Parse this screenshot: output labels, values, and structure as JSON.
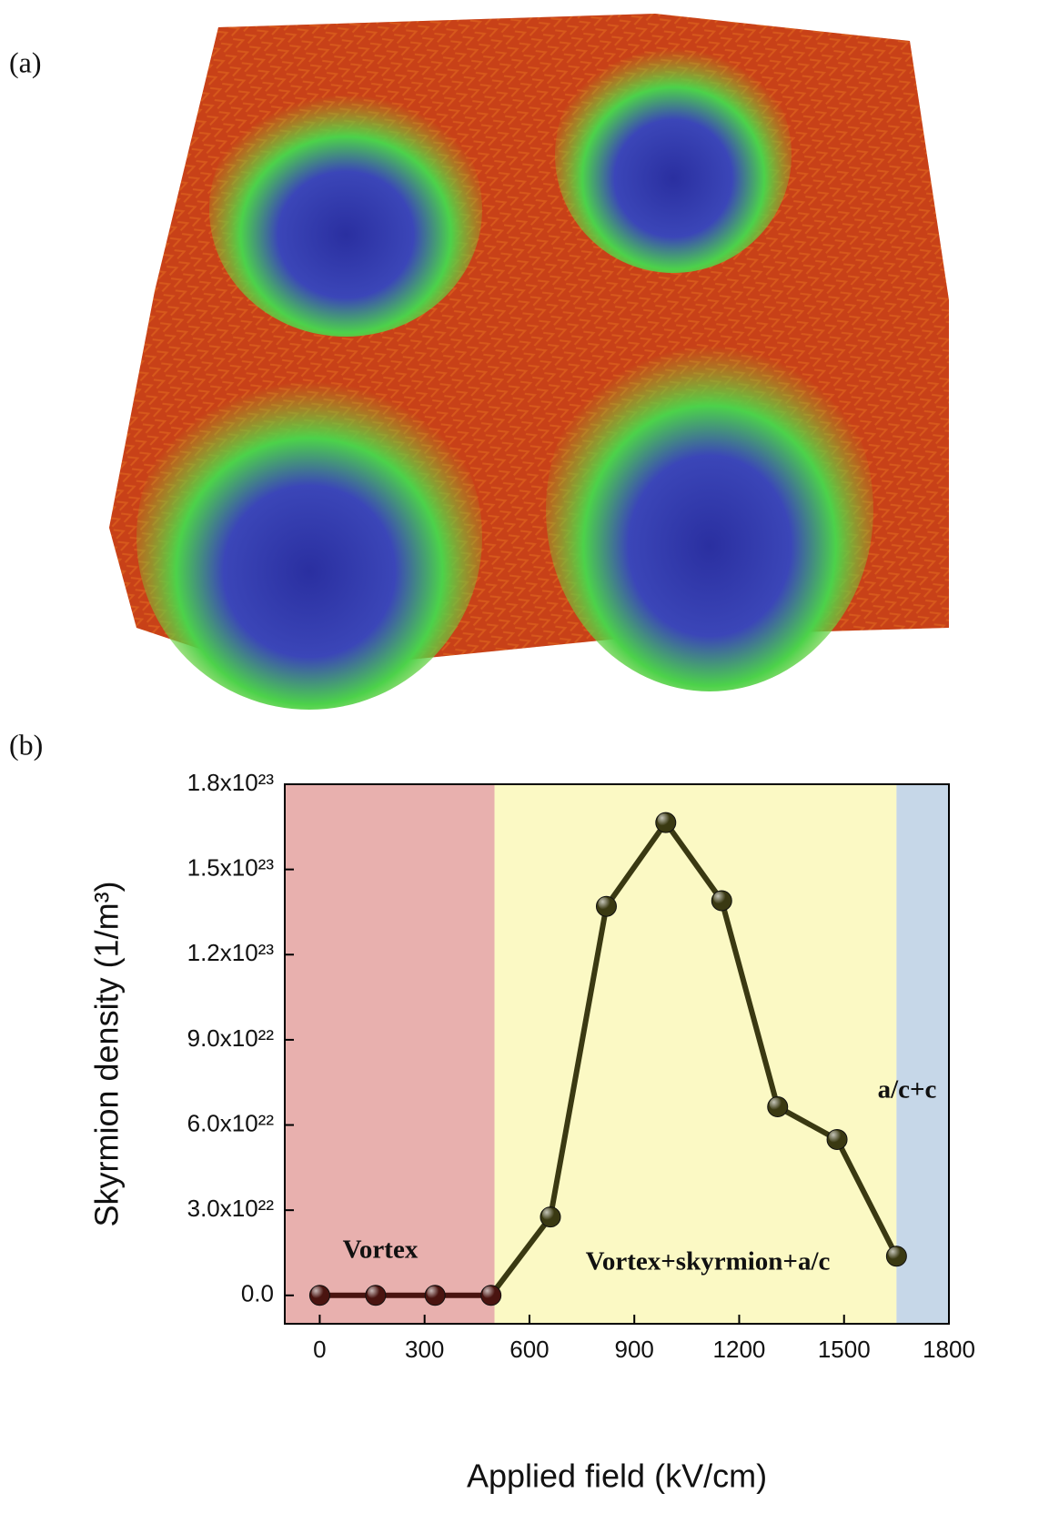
{
  "panel_a": {
    "label": "(a)"
  },
  "chart_data": {
    "type": "line",
    "panel_label": "(b)",
    "x_label": "Applied field (kV/cm)",
    "y_label": "Skyrmion density (1/m³)",
    "xlim": [
      -100,
      1800
    ],
    "xticks": [
      0,
      300,
      600,
      900,
      1200,
      1500,
      1800
    ],
    "ylim": [
      -1e+22,
      1.8e+23
    ],
    "yticks": [
      {
        "value": 0,
        "label": "0.0"
      },
      {
        "value": 3e+22,
        "label": "3.0x10²²"
      },
      {
        "value": 6e+22,
        "label": "6.0x10²²"
      },
      {
        "value": 9e+22,
        "label": "9.0x10²²"
      },
      {
        "value": 1.2e+23,
        "label": "1.2x10²³"
      },
      {
        "value": 1.5e+23,
        "label": "1.5x10²³"
      },
      {
        "value": 1.8e+23,
        "label": "1.8x10²³"
      }
    ],
    "regions": [
      {
        "label": "Vortex",
        "from": -100,
        "to": 500,
        "color": "#e8b0ae"
      },
      {
        "label": "Vortex+skyrmion+a/c",
        "from": 500,
        "to": 1650,
        "color": "#fbf9c4"
      },
      {
        "label": "a/c+c",
        "from": 1650,
        "to": 1800,
        "color": "#c6d7e8"
      }
    ],
    "series": [
      {
        "color": "#4a1410",
        "x": [
          0,
          160,
          330,
          490
        ],
        "values": [
          0,
          0,
          0,
          0
        ]
      },
      {
        "color": "#3a3912",
        "x": [
          660,
          820,
          990,
          1150,
          1310,
          1480,
          1650
        ],
        "values": [
          2.76e+22,
          1.37e+23,
          1.665e+23,
          1.39e+23,
          6.64e+22,
          5.49e+22,
          1.38e+22
        ]
      }
    ]
  }
}
